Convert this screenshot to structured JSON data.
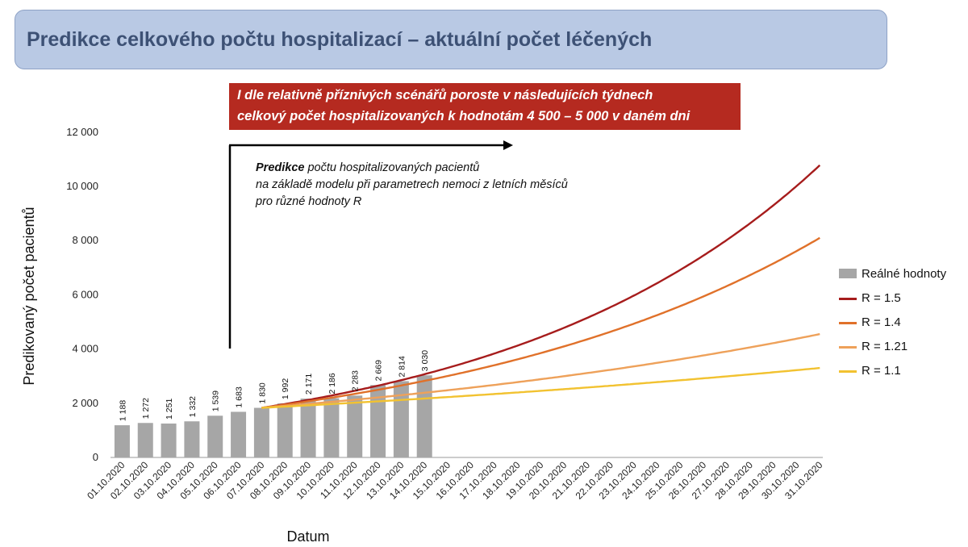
{
  "header": {
    "title": "Predikce celkového počtu hospitalizací – aktuální počet léčených"
  },
  "banner": {
    "line1": "I dle relativně příznivých scénářů poroste v následujících týdnech",
    "line2": "celkový počet hospitalizovaných k hodnotám 4 500 – 5 000 v daném dni",
    "color": "#b52a20"
  },
  "annotation": {
    "bold": "Predikce",
    "line1_rest": " počtu hospitalizovaných pacientů",
    "line2": "na základě modelu při parametrech nemoci z letních měsíců",
    "line3": "pro různé hodnoty R"
  },
  "chart_data": {
    "type": "bar",
    "xlabel": "Datum",
    "ylabel": "Predikovaný počet pacientů",
    "ylim": [
      0,
      12000
    ],
    "yticks": [
      0,
      2000,
      4000,
      6000,
      8000,
      10000,
      12000
    ],
    "ytick_labels": [
      "0",
      "2 000",
      "4 000",
      "6 000",
      "8 000",
      "10 000",
      "12 000"
    ],
    "grid": false,
    "legend_position": "right",
    "categories": [
      "01.10.2020",
      "02.10.2020",
      "03.10.2020",
      "04.10.2020",
      "05.10.2020",
      "06.10.2020",
      "07.10.2020",
      "08.10.2020",
      "09.10.2020",
      "10.10.2020",
      "11.10.2020",
      "12.10.2020",
      "13.10.2020",
      "14.10.2020",
      "15.10.2020",
      "16.10.2020",
      "17.10.2020",
      "18.10.2020",
      "19.10.2020",
      "20.10.2020",
      "21.10.2020",
      "22.10.2020",
      "23.10.2020",
      "24.10.2020",
      "25.10.2020",
      "26.10.2020",
      "27.10.2020",
      "28.10.2020",
      "29.10.2020",
      "30.10.2020",
      "31.10.2020"
    ],
    "bars": {
      "name": "Reálné hodnoty",
      "color": "#a6a6a6",
      "values": [
        1188,
        1272,
        1251,
        1332,
        1539,
        1683,
        1830,
        1992,
        2171,
        2186,
        2283,
        2669,
        2814,
        3030
      ],
      "labels": [
        "1 188",
        "1 272",
        "1 251",
        "1 332",
        "1 539",
        "1 683",
        "1 830",
        "1 992",
        "2 171",
        "2 186",
        "2 283",
        "2 669",
        "2 814",
        "3 030"
      ]
    },
    "series": [
      {
        "name": "R = 1.5",
        "color": "#a61c1c",
        "start_index": 6,
        "start_value": 1830,
        "end_value": 10780
      },
      {
        "name": "R = 1.4",
        "color": "#e0712a",
        "start_index": 6,
        "start_value": 1830,
        "end_value": 8100
      },
      {
        "name": "R = 1.21",
        "color": "#eea15a",
        "start_index": 6,
        "start_value": 1830,
        "end_value": 4550
      },
      {
        "name": "R = 1.1",
        "color": "#f2c230",
        "start_index": 6,
        "start_value": 1830,
        "end_value": 3300
      }
    ]
  }
}
